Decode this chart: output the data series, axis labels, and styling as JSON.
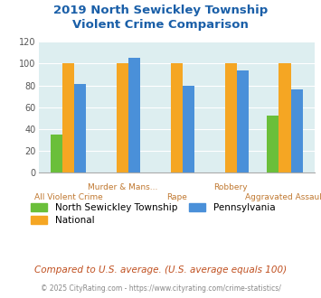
{
  "title_line1": "2019 North Sewickley Township",
  "title_line2": "Violent Crime Comparison",
  "categories": [
    "All Violent Crime",
    "Murder & Mans...",
    "Rape",
    "Robbery",
    "Aggravated Assault"
  ],
  "series": {
    "North Sewickley Township": [
      35,
      0,
      0,
      0,
      52
    ],
    "Pennsylvania": [
      81,
      105,
      80,
      94,
      76
    ],
    "National": [
      100,
      100,
      100,
      100,
      100
    ]
  },
  "colors": {
    "North Sewickley Township": "#6abf3a",
    "Pennsylvania": "#4a90d9",
    "National": "#f5a623"
  },
  "ylim": [
    0,
    120
  ],
  "yticks": [
    0,
    20,
    40,
    60,
    80,
    100,
    120
  ],
  "plot_bg": "#ddeef0",
  "title_color": "#1a5fa8",
  "xlabel_color": "#c07830",
  "footnote1": "Compared to U.S. average. (U.S. average equals 100)",
  "footnote2": "© 2025 CityRating.com - https://www.cityrating.com/crime-statistics/",
  "footnote1_color": "#c05020",
  "footnote2_color": "#888888",
  "bar_width": 0.22
}
